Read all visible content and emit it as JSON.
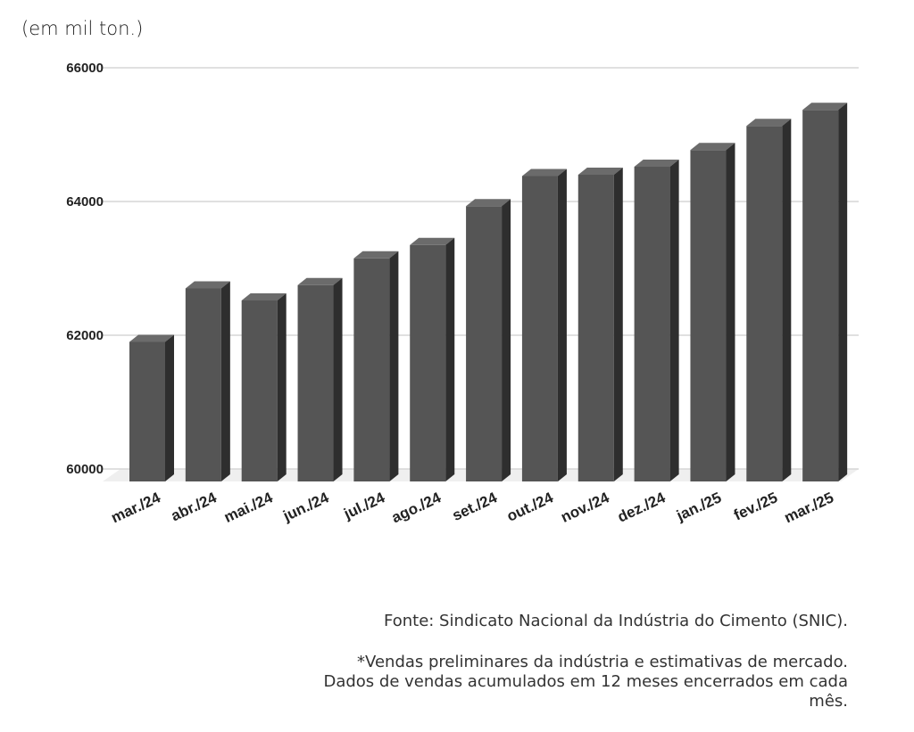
{
  "unit_label": "(em mil ton.)",
  "notes": {
    "source": "Fonte: Sindicato Nacional da Indústria do Cimento (SNIC).",
    "footnote": "*Vendas preliminares da indústria e estimativas de mercado. Dados de vendas acumulados em 12 meses encerrados em cada mês."
  },
  "colors": {
    "bar_front": "#555555",
    "bar_top": "#6b6b6b",
    "bar_side": "#2e2e2e",
    "grid": "#d6d6d6"
  },
  "chart_data": {
    "type": "bar",
    "title": "",
    "xlabel": "",
    "ylabel": "(em mil ton.)",
    "ylim": [
      60000,
      66000
    ],
    "yticks": [
      "60000",
      "62000",
      "64000",
      "66000"
    ],
    "grid": true,
    "categories": [
      "mar./24",
      "abr./24",
      "mai./24",
      "jun./24",
      "jul./24",
      "ago./24",
      "set./24",
      "out./24",
      "nov./24",
      "dez./24",
      "jan./25",
      "fev./25",
      "mar./25"
    ],
    "values": [
      61900,
      62700,
      62520,
      62750,
      63150,
      63350,
      63930,
      64380,
      64400,
      64520,
      64770,
      65130,
      65370
    ]
  }
}
